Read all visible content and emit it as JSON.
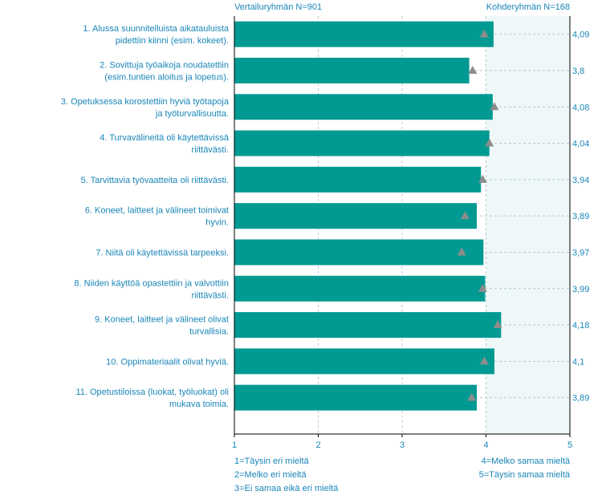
{
  "header": {
    "comparison_group": "Vertailuryhmän  N=901",
    "target_group": "Kohderyhmän N=168"
  },
  "legend": {
    "left": [
      "1=Täysin eri mieltä",
      "2=Melko eri mieltä",
      "3=Ei samaa eikä eri mieltä"
    ],
    "right": [
      "4=Melko samaa mieltä",
      "5=Täysin samaa mieltä"
    ]
  },
  "colors": {
    "bar": "#009a93",
    "marker": "#8c8c8c",
    "text": "#1a86b8",
    "shaded_region": "#eef8f8",
    "grid": "#b9c9c9"
  },
  "chart_data": {
    "type": "bar",
    "orientation": "horizontal",
    "xlim": [
      1,
      5
    ],
    "x_ticks": [
      "1",
      "2",
      "3",
      "4",
      "5"
    ],
    "shaded_from": 4,
    "grid": true,
    "categories": [
      [
        "1. Alussa suunnitelluista aikatauluista",
        "pidettiin kiinni (esim. kokeet)."
      ],
      [
        "2. Sovittuja työaikoja noudatettiin",
        "(esim.tuntien aloitus ja lopetus)."
      ],
      [
        "3. Opetuksessa korostettiin hyviä työtapoja",
        "ja työturvallisuutta."
      ],
      [
        "4. Turvavälineitä oli käytettävissä",
        "riittävästi."
      ],
      [
        "5. Tarvittavia työvaatteita oli riittävästi."
      ],
      [
        "6. Koneet, laitteet ja välineet toimivat",
        "hyvin."
      ],
      [
        "7. Niitä oli käytettävissä tarpeeksi."
      ],
      [
        "8. Niiden käyttöä opastettiin ja valvottiin",
        "riittävästi."
      ],
      [
        "9. Koneet, laitteet ja välineet olivat",
        "turvallisia."
      ],
      [
        "10. Oppimateriaalit olivat hyviä."
      ],
      [
        "11. Opetustiloissa (luokat, työluokat) oli",
        "mukava toimia."
      ]
    ],
    "series": [
      {
        "name": "Kohderyhmän N=168",
        "kind": "bar",
        "values": [
          4.09,
          3.8,
          4.08,
          4.04,
          3.94,
          3.89,
          3.97,
          3.99,
          4.18,
          4.1,
          3.89
        ],
        "value_labels": [
          "4,09",
          "3,8",
          "4,08",
          "4,04",
          "3,94",
          "3,89",
          "3,97",
          "3,99",
          "4,18",
          "4,1",
          "3,89"
        ]
      },
      {
        "name": "Vertailuryhmän  N=901",
        "kind": "marker",
        "values": [
          3.98,
          3.84,
          4.1,
          4.04,
          3.96,
          3.75,
          3.71,
          3.96,
          4.14,
          3.98,
          3.83
        ]
      }
    ]
  }
}
